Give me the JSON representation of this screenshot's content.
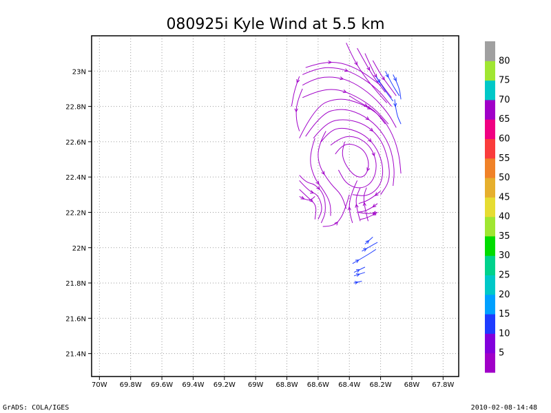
{
  "chart_data": {
    "type": "streamline",
    "title": "080925i Kyle Wind at 5.5 km",
    "x_ticks": [
      "70W",
      "69.8W",
      "69.6W",
      "69.4W",
      "69.2W",
      "69W",
      "68.8W",
      "68.6W",
      "68.4W",
      "68.2W",
      "68W",
      "67.8W"
    ],
    "x_tick_values": [
      -70.0,
      -69.8,
      -69.6,
      -69.4,
      -69.2,
      -69.0,
      -68.8,
      -68.6,
      -68.4,
      -68.2,
      -68.0,
      -67.8
    ],
    "y_ticks": [
      "21.4N",
      "21.6N",
      "21.8N",
      "22N",
      "22.2N",
      "22.4N",
      "22.6N",
      "22.8N",
      "23N"
    ],
    "y_tick_values": [
      21.4,
      21.6,
      21.8,
      22.0,
      22.2,
      22.4,
      22.6,
      22.8,
      23.0
    ],
    "xlim": [
      -70.05,
      -67.7
    ],
    "ylim": [
      21.27,
      23.2
    ],
    "grid": true,
    "colorbar": {
      "labels": [
        "5",
        "10",
        "15",
        "20",
        "25",
        "30",
        "35",
        "40",
        "45",
        "50",
        "55",
        "60",
        "65",
        "70",
        "75",
        "80"
      ],
      "colors": [
        "#a000c8",
        "#8200dc",
        "#1e3cff",
        "#00a0ff",
        "#00c8c8",
        "#00d28c",
        "#00dc00",
        "#a0e632",
        "#e6dc32",
        "#e6af2d",
        "#f08228",
        "#fa3c3c",
        "#f00082",
        "#a000c8",
        "#00c8c8",
        "#a0e632",
        "#a0a0a0"
      ]
    },
    "streamlines": [
      {
        "color": "#a000c8",
        "points": [
          [
            -68.49,
            22.53
          ],
          [
            -68.45,
            22.58
          ],
          [
            -68.38,
            22.59
          ],
          [
            -68.3,
            22.55
          ],
          [
            -68.27,
            22.47
          ],
          [
            -68.3,
            22.4
          ],
          [
            -68.36,
            22.4
          ],
          [
            -68.42,
            22.46
          ],
          [
            -68.45,
            22.53
          ],
          [
            -68.43,
            22.6
          ]
        ]
      },
      {
        "color": "#a000c8",
        "points": [
          [
            -68.52,
            22.58
          ],
          [
            -68.45,
            22.63
          ],
          [
            -68.35,
            22.63
          ],
          [
            -68.26,
            22.57
          ],
          [
            -68.22,
            22.47
          ],
          [
            -68.25,
            22.37
          ],
          [
            -68.33,
            22.33
          ],
          [
            -68.42,
            22.36
          ],
          [
            -68.47,
            22.44
          ]
        ]
      },
      {
        "color": "#a000c8",
        "points": [
          [
            -68.58,
            22.6
          ],
          [
            -68.52,
            22.67
          ],
          [
            -68.42,
            22.68
          ],
          [
            -68.3,
            22.64
          ],
          [
            -68.22,
            22.56
          ],
          [
            -68.18,
            22.45
          ],
          [
            -68.2,
            22.35
          ],
          [
            -68.28,
            22.29
          ],
          [
            -68.38,
            22.3
          ]
        ]
      },
      {
        "color": "#a000c8",
        "points": [
          [
            -68.63,
            22.62
          ],
          [
            -68.55,
            22.71
          ],
          [
            -68.43,
            22.73
          ],
          [
            -68.3,
            22.7
          ],
          [
            -68.2,
            22.62
          ],
          [
            -68.15,
            22.5
          ],
          [
            -68.14,
            22.38
          ],
          [
            -68.2,
            22.3
          ]
        ]
      },
      {
        "color": "#a000c8",
        "points": [
          [
            -68.68,
            22.63
          ],
          [
            -68.58,
            22.76
          ],
          [
            -68.45,
            22.79
          ],
          [
            -68.33,
            22.76
          ],
          [
            -68.22,
            22.69
          ],
          [
            -68.14,
            22.58
          ],
          [
            -68.11,
            22.45
          ],
          [
            -68.12,
            22.35
          ]
        ]
      },
      {
        "color": "#a000c8",
        "points": [
          [
            -68.72,
            22.62
          ],
          [
            -68.62,
            22.8
          ],
          [
            -68.47,
            22.85
          ],
          [
            -68.33,
            22.82
          ],
          [
            -68.2,
            22.75
          ],
          [
            -68.12,
            22.64
          ],
          [
            -68.08,
            22.52
          ],
          [
            -68.07,
            22.42
          ]
        ]
      },
      {
        "color": "#a000c8",
        "points": [
          [
            -68.55,
            22.66
          ],
          [
            -68.6,
            22.58
          ],
          [
            -68.6,
            22.47
          ],
          [
            -68.52,
            22.36
          ],
          [
            -68.45,
            22.3
          ],
          [
            -68.42,
            22.22
          ]
        ]
      },
      {
        "color": "#a000c8",
        "points": [
          [
            -68.62,
            22.62
          ],
          [
            -68.66,
            22.52
          ],
          [
            -68.63,
            22.4
          ],
          [
            -68.56,
            22.32
          ],
          [
            -68.52,
            22.25
          ],
          [
            -68.52,
            22.18
          ]
        ]
      },
      {
        "color": "#a000c8",
        "points": [
          [
            -68.72,
            22.41
          ],
          [
            -68.68,
            22.37
          ],
          [
            -68.62,
            22.36
          ],
          [
            -68.56,
            22.3
          ],
          [
            -68.55,
            22.2
          ],
          [
            -68.58,
            22.14
          ]
        ]
      },
      {
        "color": "#a000c8",
        "points": [
          [
            -68.72,
            22.38
          ],
          [
            -68.66,
            22.32
          ],
          [
            -68.6,
            22.3
          ],
          [
            -68.57,
            22.22
          ],
          [
            -68.6,
            22.16
          ]
        ]
      },
      {
        "color": "#a000c8",
        "points": [
          [
            -68.72,
            22.33
          ],
          [
            -68.66,
            22.28
          ],
          [
            -68.61,
            22.24
          ],
          [
            -68.62,
            22.16
          ]
        ]
      },
      {
        "color": "#a000c8",
        "points": [
          [
            -68.72,
            22.29
          ],
          [
            -68.66,
            22.26
          ],
          [
            -68.62,
            22.29
          ]
        ]
      },
      {
        "color": "#a000c8",
        "points": [
          [
            -68.57,
            22.12
          ],
          [
            -68.5,
            22.12
          ],
          [
            -68.45,
            22.17
          ],
          [
            -68.42,
            22.24
          ],
          [
            -68.4,
            22.3
          ]
        ]
      },
      {
        "color": "#a000c8",
        "points": [
          [
            -68.38,
            22.14
          ],
          [
            -68.4,
            22.2
          ],
          [
            -68.4,
            22.26
          ],
          [
            -68.38,
            22.32
          ],
          [
            -68.35,
            22.38
          ]
        ]
      },
      {
        "color": "#a000c8",
        "points": [
          [
            -68.33,
            22.15
          ],
          [
            -68.35,
            22.21
          ],
          [
            -68.36,
            22.28
          ],
          [
            -68.33,
            22.34
          ]
        ]
      },
      {
        "color": "#a000c8",
        "points": [
          [
            -68.28,
            22.15
          ],
          [
            -68.3,
            22.22
          ],
          [
            -68.31,
            22.29
          ],
          [
            -68.29,
            22.34
          ]
        ]
      },
      {
        "color": "#a000c8",
        "points": [
          [
            -68.22,
            22.2
          ],
          [
            -68.28,
            22.17
          ],
          [
            -68.33,
            22.16
          ]
        ]
      },
      {
        "color": "#a000c8",
        "points": [
          [
            -68.22,
            22.25
          ],
          [
            -68.28,
            22.21
          ],
          [
            -68.35,
            22.2
          ]
        ]
      },
      {
        "color": "#a000c8",
        "points": [
          [
            -68.2,
            22.32
          ],
          [
            -68.27,
            22.27
          ],
          [
            -68.34,
            22.25
          ]
        ]
      },
      {
        "color": "#a000c8",
        "points": [
          [
            -68.7,
            22.92
          ],
          [
            -68.62,
            22.96
          ],
          [
            -68.5,
            22.97
          ],
          [
            -68.38,
            22.94
          ],
          [
            -68.25,
            22.86
          ],
          [
            -68.15,
            22.76
          ],
          [
            -68.1,
            22.68
          ]
        ]
      },
      {
        "color": "#a000c8",
        "points": [
          [
            -68.7,
            22.98
          ],
          [
            -68.6,
            23.02
          ],
          [
            -68.47,
            23.02
          ],
          [
            -68.35,
            22.98
          ],
          [
            -68.22,
            22.9
          ],
          [
            -68.13,
            22.8
          ]
        ]
      },
      {
        "color": "#a000c8",
        "points": [
          [
            -68.68,
            23.02
          ],
          [
            -68.58,
            23.05
          ],
          [
            -68.45,
            23.05
          ],
          [
            -68.32,
            23.0
          ],
          [
            -68.2,
            22.92
          ]
        ]
      },
      {
        "color": "#a000c8",
        "points": [
          [
            -68.7,
            22.85
          ],
          [
            -68.6,
            22.89
          ],
          [
            -68.48,
            22.9
          ],
          [
            -68.36,
            22.86
          ],
          [
            -68.24,
            22.79
          ],
          [
            -68.15,
            22.7
          ]
        ]
      },
      {
        "color": "#a000c8",
        "points": [
          [
            -68.7,
            22.9
          ],
          [
            -68.74,
            22.82
          ],
          [
            -68.74,
            22.72
          ],
          [
            -68.72,
            22.66
          ]
        ]
      },
      {
        "color": "#a000c8",
        "points": [
          [
            -68.72,
            22.97
          ],
          [
            -68.75,
            22.9
          ],
          [
            -68.77,
            22.8
          ]
        ]
      },
      {
        "color": "#a000c8",
        "points": [
          [
            -68.42,
            23.16
          ],
          [
            -68.38,
            23.08
          ],
          [
            -68.32,
            22.99
          ],
          [
            -68.24,
            22.9
          ],
          [
            -68.16,
            22.82
          ]
        ]
      },
      {
        "color": "#a000c8",
        "points": [
          [
            -68.35,
            23.13
          ],
          [
            -68.3,
            23.05
          ],
          [
            -68.24,
            22.96
          ],
          [
            -68.17,
            22.88
          ]
        ]
      },
      {
        "color": "#a000c8",
        "points": [
          [
            -68.3,
            23.1
          ],
          [
            -68.25,
            23.0
          ],
          [
            -68.2,
            22.93
          ],
          [
            -68.13,
            22.85
          ]
        ]
      },
      {
        "color": "#a000c8",
        "points": [
          [
            -68.25,
            23.06
          ],
          [
            -68.2,
            22.98
          ],
          [
            -68.15,
            22.92
          ],
          [
            -68.1,
            22.86
          ]
        ]
      },
      {
        "color": "#a000c8",
        "points": [
          [
            -68.4,
            22.86
          ],
          [
            -68.33,
            22.82
          ],
          [
            -68.24,
            22.78
          ],
          [
            -68.17,
            22.7
          ]
        ]
      },
      {
        "color": "#a000c8",
        "points": [
          [
            -68.22,
            22.2
          ],
          [
            -68.28,
            22.19
          ],
          [
            -68.34,
            22.2
          ]
        ]
      },
      {
        "color": "#1e3cff",
        "points": [
          [
            -68.17,
            23.0
          ],
          [
            -68.13,
            22.93
          ],
          [
            -68.08,
            22.86
          ]
        ]
      },
      {
        "color": "#1e3cff",
        "points": [
          [
            -68.12,
            22.98
          ],
          [
            -68.08,
            22.91
          ],
          [
            -68.07,
            22.84
          ]
        ]
      },
      {
        "color": "#1e3cff",
        "points": [
          [
            -68.23,
            22.97
          ],
          [
            -68.18,
            22.9
          ],
          [
            -68.12,
            22.83
          ]
        ]
      },
      {
        "color": "#1e3cff",
        "points": [
          [
            -68.11,
            22.84
          ],
          [
            -68.1,
            22.76
          ],
          [
            -68.07,
            22.7
          ]
        ]
      },
      {
        "color": "#1e3cff",
        "points": [
          [
            -68.3,
            22.02
          ],
          [
            -68.25,
            22.06
          ]
        ]
      },
      {
        "color": "#1e3cff",
        "points": [
          [
            -68.32,
            21.98
          ],
          [
            -68.26,
            22.01
          ],
          [
            -68.22,
            22.03
          ]
        ]
      },
      {
        "color": "#1e3cff",
        "points": [
          [
            -68.38,
            21.91
          ],
          [
            -68.3,
            21.95
          ],
          [
            -68.23,
            21.99
          ]
        ]
      },
      {
        "color": "#1e3cff",
        "points": [
          [
            -68.37,
            21.86
          ],
          [
            -68.3,
            21.89
          ]
        ]
      },
      {
        "color": "#1e3cff",
        "points": [
          [
            -68.37,
            21.84
          ],
          [
            -68.3,
            21.86
          ]
        ]
      },
      {
        "color": "#1e3cff",
        "points": [
          [
            -68.37,
            21.8
          ],
          [
            -68.32,
            21.81
          ]
        ]
      }
    ]
  },
  "footer": {
    "left": "GrADS: COLA/IGES",
    "right": "2010-02-08-14:48"
  }
}
